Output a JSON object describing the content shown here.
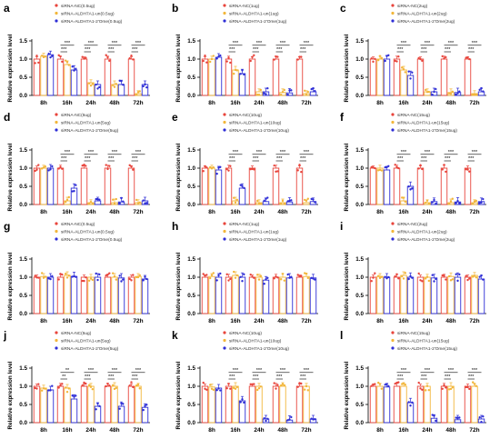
{
  "figure": {
    "colors": {
      "nc": "#e8453c",
      "un": "#f2b63a",
      "ome": "#2e2ed6"
    },
    "ylabel": "Relative expression level"
  },
  "chart_data": [
    {
      "panel": "a",
      "type": "bar",
      "categories": [
        "8h",
        "16h",
        "24h",
        "48h",
        "72h"
      ],
      "ylim": [
        0,
        1.5
      ],
      "yticks": [
        0.0,
        0.5,
        1.0,
        1.5
      ],
      "series": [
        {
          "name": "siRNA-NC(0.5ug)",
          "values": [
            1.0,
            1.0,
            1.0,
            1.0,
            1.0
          ]
        },
        {
          "name": "siRNA-ALDH7A1-un(0.5ug)",
          "values": [
            1.08,
            0.85,
            0.35,
            0.3,
            0.05
          ]
        },
        {
          "name": "siRNA-ALDH7A1-2'Ome(0.5ug)",
          "values": [
            1.12,
            0.7,
            0.3,
            0.3,
            0.3
          ]
        }
      ],
      "sig": [
        {
          "top": "",
          "bottom": ""
        },
        {
          "top": "***",
          "bottom": "***"
        },
        {
          "top": "***",
          "bottom": "***"
        },
        {
          "top": "***",
          "bottom": "***"
        },
        {
          "top": "***",
          "bottom": "***"
        }
      ]
    },
    {
      "panel": "b",
      "type": "bar",
      "categories": [
        "8h",
        "16h",
        "24h",
        "48h",
        "72h"
      ],
      "ylim": [
        0,
        1.5
      ],
      "yticks": [
        0.0,
        0.5,
        1.0,
        1.5
      ],
      "series": [
        {
          "name": "siRNA-NC(1ug)",
          "values": [
            1.0,
            1.0,
            1.0,
            1.0,
            1.0
          ]
        },
        {
          "name": "siRNA-ALDH7A1-un(1ug)",
          "values": [
            1.0,
            0.7,
            0.1,
            0.08,
            0.05
          ]
        },
        {
          "name": "siRNA-ALDH7A1-2'Ome(1ug)",
          "values": [
            1.05,
            0.6,
            0.1,
            0.07,
            0.1
          ]
        }
      ],
      "sig": [
        {
          "top": "",
          "bottom": ""
        },
        {
          "top": "***",
          "bottom": "***"
        },
        {
          "top": "***",
          "bottom": "***"
        },
        {
          "top": "***",
          "bottom": "***"
        },
        {
          "top": "***",
          "bottom": "***"
        }
      ]
    },
    {
      "panel": "c",
      "type": "bar",
      "categories": [
        "8h",
        "16h",
        "24h",
        "48h",
        "72h"
      ],
      "ylim": [
        0,
        1.5
      ],
      "yticks": [
        0.0,
        0.5,
        1.0,
        1.5
      ],
      "series": [
        {
          "name": "siRNA-NC(2ug)",
          "values": [
            1.0,
            1.0,
            1.0,
            1.0,
            1.0
          ]
        },
        {
          "name": "siRNA-ALDH7A1-un(2ug)",
          "values": [
            1.0,
            0.7,
            0.1,
            0.08,
            0.05
          ]
        },
        {
          "name": "siRNA-ALDH7A1-2'Ome(2ug)",
          "values": [
            1.0,
            0.55,
            0.1,
            0.08,
            0.1
          ]
        }
      ],
      "sig": [
        {
          "top": "",
          "bottom": ""
        },
        {
          "top": "***",
          "bottom": "***"
        },
        {
          "top": "***",
          "bottom": "***"
        },
        {
          "top": "***",
          "bottom": "***"
        },
        {
          "top": "***",
          "bottom": "***"
        }
      ]
    },
    {
      "panel": "d",
      "type": "bar",
      "categories": [
        "8h",
        "16h",
        "24h",
        "48h",
        "72h"
      ],
      "ylim": [
        0,
        1.5
      ],
      "yticks": [
        0.0,
        0.5,
        1.0,
        1.5
      ],
      "series": [
        {
          "name": "siRNA-NC(5ug)",
          "values": [
            1.0,
            1.0,
            1.0,
            1.0,
            1.0
          ]
        },
        {
          "name": "siRNA-ALDH7A1-un(5ug)",
          "values": [
            1.0,
            0.1,
            0.05,
            0.05,
            0.05
          ]
        },
        {
          "name": "siRNA-ALDH7A1-2'Ome(5ug)",
          "values": [
            1.0,
            0.45,
            0.1,
            0.07,
            0.1
          ]
        }
      ],
      "sig": [
        {
          "top": "",
          "bottom": ""
        },
        {
          "top": "***",
          "bottom": "***"
        },
        {
          "top": "***",
          "bottom": "***"
        },
        {
          "top": "***",
          "bottom": "***"
        },
        {
          "top": "***",
          "bottom": "***"
        }
      ]
    },
    {
      "panel": "e",
      "type": "bar",
      "categories": [
        "8h",
        "16h",
        "24h",
        "48h",
        "72h"
      ],
      "ylim": [
        0,
        1.5
      ],
      "yticks": [
        0.0,
        0.5,
        1.0,
        1.5
      ],
      "series": [
        {
          "name": "siRNA-NC(10ug)",
          "values": [
            1.0,
            1.0,
            1.0,
            1.0,
            1.0
          ]
        },
        {
          "name": "siRNA-ALDH7A1-un(10ug)",
          "values": [
            1.0,
            0.1,
            0.05,
            0.05,
            0.05
          ]
        },
        {
          "name": "siRNA-ALDH7A1-2'Ome(10ug)",
          "values": [
            0.95,
            0.45,
            0.08,
            0.07,
            0.08
          ]
        }
      ],
      "sig": [
        {
          "top": "",
          "bottom": ""
        },
        {
          "top": "***",
          "bottom": "***"
        },
        {
          "top": "***",
          "bottom": "***"
        },
        {
          "top": "***",
          "bottom": "***"
        },
        {
          "top": "***",
          "bottom": "***"
        }
      ]
    },
    {
      "panel": "f",
      "type": "bar",
      "categories": [
        "8h",
        "16h",
        "24h",
        "48h",
        "72h"
      ],
      "ylim": [
        0,
        1.5
      ],
      "yticks": [
        0.0,
        0.5,
        1.0,
        1.5
      ],
      "series": [
        {
          "name": "siRNA-NC(15ug)",
          "values": [
            1.0,
            1.0,
            1.0,
            1.0,
            1.0
          ]
        },
        {
          "name": "siRNA-ALDH7A1-un(15ug)",
          "values": [
            1.0,
            0.1,
            0.05,
            0.05,
            0.05
          ]
        },
        {
          "name": "siRNA-ALDH7A1-2'Ome(15ug)",
          "values": [
            0.95,
            0.5,
            0.08,
            0.07,
            0.08
          ]
        }
      ],
      "sig": [
        {
          "top": "",
          "bottom": ""
        },
        {
          "top": "***",
          "bottom": "***"
        },
        {
          "top": "***",
          "bottom": "***"
        },
        {
          "top": "***",
          "bottom": "***"
        },
        {
          "top": "***",
          "bottom": "***"
        }
      ]
    },
    {
      "panel": "g",
      "type": "bar",
      "categories": [
        "8h",
        "16h",
        "24h",
        "48h",
        "72h"
      ],
      "ylim": [
        0,
        1.5
      ],
      "yticks": [
        0.0,
        0.5,
        1.0,
        1.5
      ],
      "series": [
        {
          "name": "siRNA-NC(0.5ug)",
          "values": [
            1.0,
            1.0,
            1.0,
            1.0,
            1.0
          ]
        },
        {
          "name": "siRNA-ALDH7A1-un(0.5ug)",
          "values": [
            1.02,
            1.05,
            1.0,
            1.0,
            1.02
          ]
        },
        {
          "name": "siRNA-ALDH7A1-2'Ome(0.5ug)",
          "values": [
            1.0,
            1.02,
            1.0,
            0.98,
            0.95
          ]
        }
      ],
      "sig": []
    },
    {
      "panel": "h",
      "type": "bar",
      "categories": [
        "8h",
        "16h",
        "24h",
        "48h",
        "72h"
      ],
      "ylim": [
        0,
        1.5
      ],
      "yticks": [
        0.0,
        0.5,
        1.0,
        1.5
      ],
      "series": [
        {
          "name": "siRNA-NC(1ug)",
          "values": [
            1.0,
            1.0,
            1.0,
            1.0,
            1.0
          ]
        },
        {
          "name": "siRNA-ALDH7A1-un(1ug)",
          "values": [
            1.02,
            1.05,
            1.0,
            1.0,
            1.02
          ]
        },
        {
          "name": "siRNA-ALDH7A1-2'Ome(1ug)",
          "values": [
            1.0,
            1.0,
            0.92,
            0.98,
            0.98
          ]
        }
      ],
      "sig": []
    },
    {
      "panel": "i",
      "type": "bar",
      "categories": [
        "8h",
        "16h",
        "24h",
        "48h",
        "72h"
      ],
      "ylim": [
        0,
        1.5
      ],
      "yticks": [
        0.0,
        0.5,
        1.0,
        1.5
      ],
      "series": [
        {
          "name": "siRNA-NC(2ug)",
          "values": [
            1.0,
            1.0,
            1.0,
            1.0,
            1.0
          ]
        },
        {
          "name": "siRNA-ALDH7A1-un(2ug)",
          "values": [
            1.02,
            1.05,
            1.0,
            1.02,
            1.05
          ]
        },
        {
          "name": "siRNA-ALDH7A1-2'Ome(2ug)",
          "values": [
            1.0,
            1.0,
            0.98,
            1.0,
            0.95
          ]
        }
      ],
      "sig": []
    },
    {
      "panel": "j",
      "type": "bar",
      "categories": [
        "8h",
        "16h",
        "24h",
        "48h",
        "72h"
      ],
      "ylim": [
        0,
        1.5
      ],
      "yticks": [
        0.0,
        0.5,
        1.0,
        1.5
      ],
      "series": [
        {
          "name": "siRNA-NC(5ug)",
          "values": [
            1.0,
            1.0,
            1.0,
            1.0,
            1.0
          ]
        },
        {
          "name": "siRNA-ALDH7A1-un(5ug)",
          "values": [
            0.95,
            0.95,
            1.0,
            1.0,
            1.0
          ]
        },
        {
          "name": "siRNA-ALDH7A1-2'Ome(5ug)",
          "values": [
            0.9,
            0.65,
            0.45,
            0.45,
            0.42
          ]
        }
      ],
      "sig": [
        {
          "top": "",
          "bottom": ""
        },
        {
          "top": "**",
          "bottom": "**"
        },
        {
          "top": "***",
          "bottom": "***"
        },
        {
          "top": "***",
          "bottom": "***"
        },
        {
          "top": "***",
          "bottom": "***"
        }
      ]
    },
    {
      "panel": "k",
      "type": "bar",
      "categories": [
        "8h",
        "16h",
        "24h",
        "48h",
        "72h"
      ],
      "ylim": [
        0,
        1.5
      ],
      "yticks": [
        0.0,
        0.5,
        1.0,
        1.5
      ],
      "series": [
        {
          "name": "siRNA-NC(10ug)",
          "values": [
            1.0,
            1.0,
            1.0,
            1.0,
            1.0
          ]
        },
        {
          "name": "siRNA-ALDH7A1-un(10ug)",
          "values": [
            0.98,
            1.0,
            1.0,
            1.0,
            1.0
          ]
        },
        {
          "name": "siRNA-ALDH7A1-2'Ome(10ug)",
          "values": [
            0.95,
            0.6,
            0.1,
            0.07,
            0.1
          ]
        }
      ],
      "sig": [
        {
          "top": "",
          "bottom": ""
        },
        {
          "top": "***",
          "bottom": "***"
        },
        {
          "top": "***",
          "bottom": "***"
        },
        {
          "top": "***",
          "bottom": "***"
        },
        {
          "top": "***",
          "bottom": "***"
        }
      ]
    },
    {
      "panel": "l",
      "type": "bar",
      "categories": [
        "8h",
        "16h",
        "24h",
        "48h",
        "72h"
      ],
      "ylim": [
        0,
        1.5
      ],
      "yticks": [
        0.0,
        0.5,
        1.0,
        1.5
      ],
      "series": [
        {
          "name": "siRNA-NC(15ug)",
          "values": [
            1.0,
            1.0,
            1.0,
            1.0,
            1.0
          ]
        },
        {
          "name": "siRNA-ALDH7A1-un(15ug)",
          "values": [
            1.0,
            1.0,
            1.0,
            1.0,
            1.0
          ]
        },
        {
          "name": "siRNA-ALDH7A1-2'Ome(15ug)",
          "values": [
            0.98,
            0.55,
            0.12,
            0.08,
            0.1
          ]
        }
      ],
      "sig": [
        {
          "top": "",
          "bottom": ""
        },
        {
          "top": "***",
          "bottom": "***"
        },
        {
          "top": "***",
          "bottom": "***"
        },
        {
          "top": "***",
          "bottom": "***"
        },
        {
          "top": "***",
          "bottom": "***"
        }
      ]
    }
  ]
}
